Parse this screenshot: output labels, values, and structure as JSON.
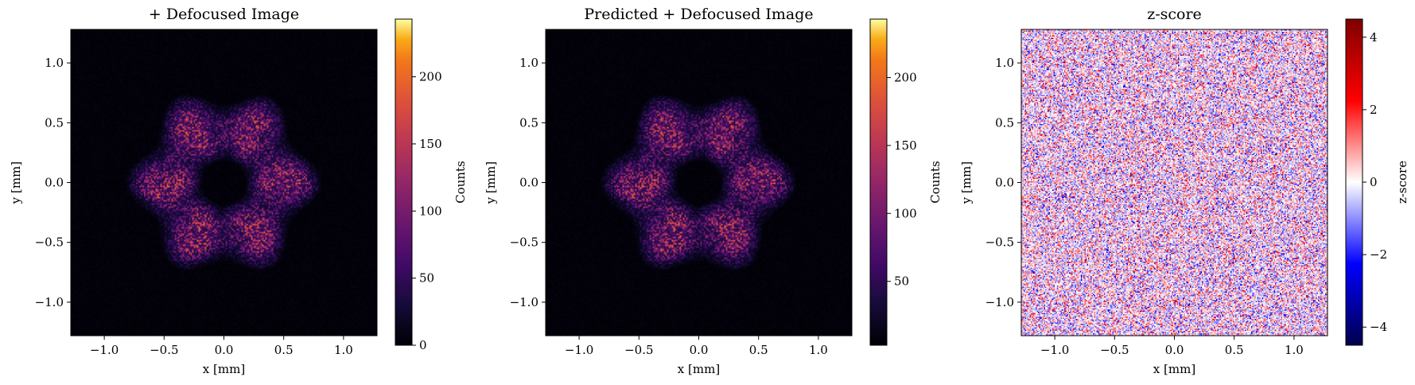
{
  "chart_data": [
    {
      "type": "heatmap",
      "title": "+ Defocused Image",
      "xlabel": "x [mm]",
      "ylabel": "y [mm]",
      "xlim": [
        -1.28,
        1.28
      ],
      "ylim": [
        -1.28,
        1.28
      ],
      "xticks": [
        "−1.0",
        "−0.5",
        "0.0",
        "0.5",
        "1.0"
      ],
      "yticks": [
        "−1.0",
        "−0.5",
        "0.0",
        "0.5",
        "1.0"
      ],
      "colormap": "inferno",
      "colorbar": {
        "label": "Counts",
        "range": [
          0,
          243
        ],
        "ticks": [
          "0",
          "50",
          "100",
          "150",
          "200"
        ],
        "tick_values": [
          0,
          50,
          100,
          150,
          200
        ]
      },
      "pattern": "speckled hexagonal ring centered at origin, outer radius ~0.7 mm, dark central hole ~0.25 mm, peak counts ~240"
    },
    {
      "type": "heatmap",
      "title": "Predicted + Defocused Image",
      "xlabel": "x [mm]",
      "ylabel": "y [mm]",
      "xlim": [
        -1.28,
        1.28
      ],
      "ylim": [
        -1.28,
        1.28
      ],
      "xticks": [
        "−1.0",
        "−0.5",
        "0.0",
        "0.5",
        "1.0"
      ],
      "yticks": [
        "−1.0",
        "−0.5",
        "0.0",
        "0.5",
        "1.0"
      ],
      "colormap": "inferno",
      "colorbar": {
        "label": "Counts",
        "range": [
          3,
          243
        ],
        "ticks": [
          "50",
          "100",
          "150",
          "200"
        ],
        "tick_values": [
          50,
          100,
          150,
          200
        ]
      },
      "pattern": "speckled hexagonal ring centered at origin, outer radius ~0.7 mm, dark central hole ~0.25 mm, peak counts ~240"
    },
    {
      "type": "heatmap",
      "title": "z-score",
      "xlabel": "x [mm]",
      "ylabel": "y [mm]",
      "xlim": [
        -1.28,
        1.28
      ],
      "ylim": [
        -1.28,
        1.28
      ],
      "xticks": [
        "−1.0",
        "−0.5",
        "0.0",
        "0.5",
        "1.0"
      ],
      "yticks": [
        "−1.0",
        "−0.5",
        "0.0",
        "0.5",
        "1.0"
      ],
      "colormap": "seismic",
      "colorbar": {
        "label": "z-score",
        "range": [
          -4.5,
          4.5
        ],
        "ticks": [
          "−4",
          "−2",
          "0",
          "2",
          "4"
        ],
        "tick_values": [
          -4,
          -2,
          0,
          2,
          4
        ]
      },
      "pattern": "spatially uncorrelated noise, roughly standard normal over the full field"
    }
  ]
}
